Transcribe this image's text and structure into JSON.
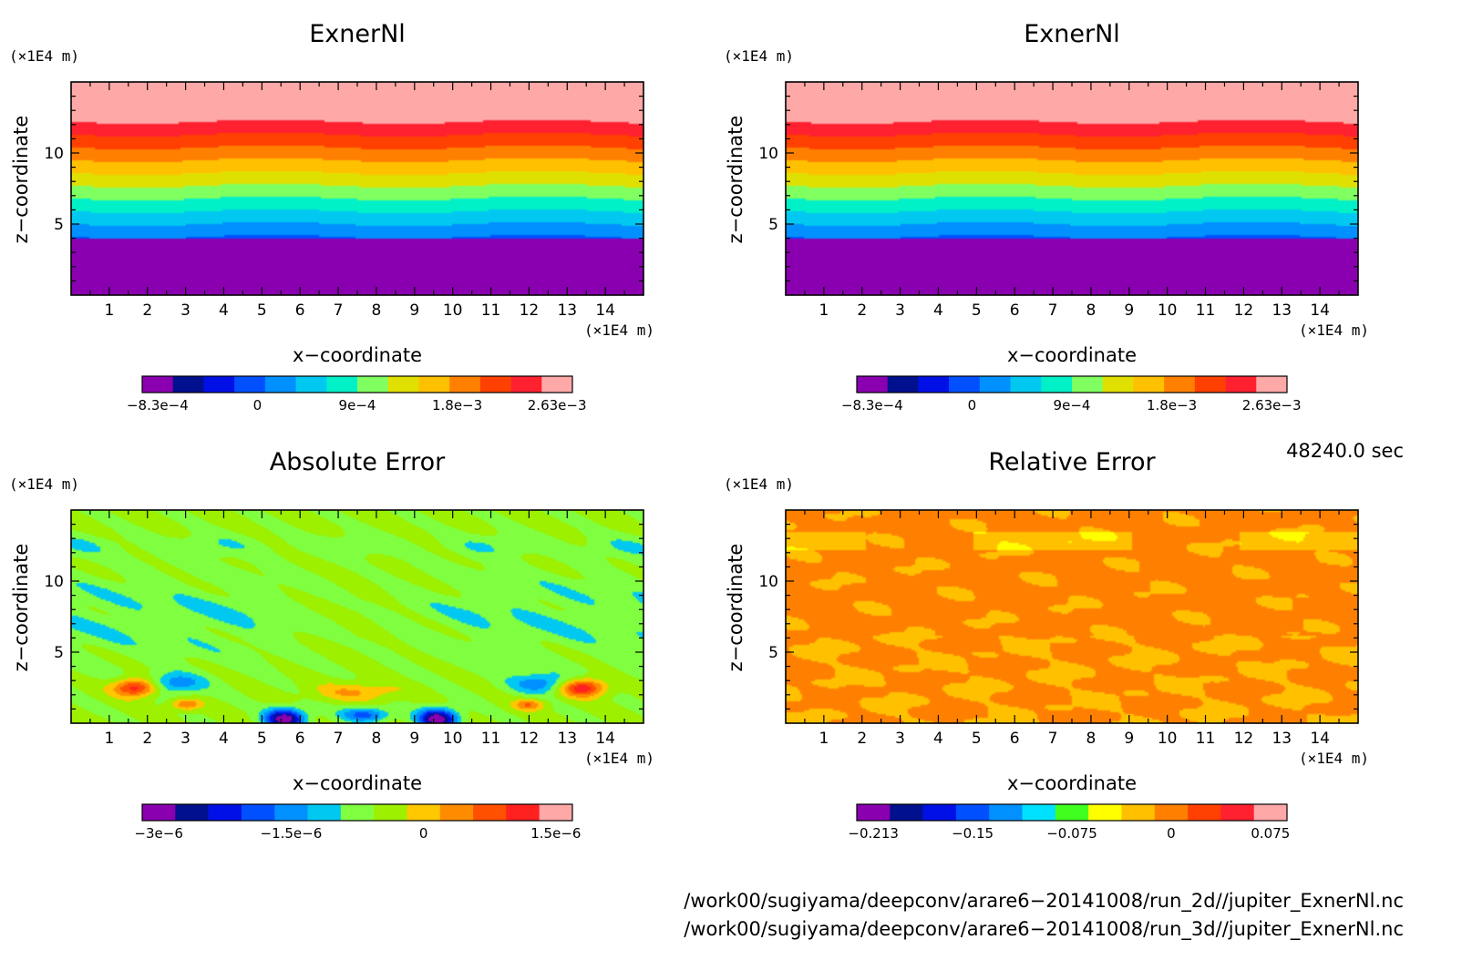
{
  "chart_data": [
    {
      "type": "heatmap",
      "title": "ExnerNl",
      "xlabel": "x−coordinate",
      "ylabel": "z−coordinate",
      "x_unit": "(×1E4 m)",
      "y_unit": "(×1E4 m)",
      "xlim": [
        0,
        15
      ],
      "ylim": [
        0,
        15
      ],
      "x_ticks": [
        "1",
        "2",
        "3",
        "4",
        "5",
        "6",
        "7",
        "8",
        "9",
        "10",
        "11",
        "12",
        "13",
        "14"
      ],
      "y_ticks": [
        "5",
        "10"
      ],
      "field": "layered",
      "colorbar": {
        "colors": [
          "#8a00b0",
          "#00108e",
          "#0010e6",
          "#0050ff",
          "#0090ff",
          "#00c8f0",
          "#00f0c8",
          "#80ff60",
          "#e0e000",
          "#ffc000",
          "#ff8000",
          "#ff4000",
          "#ff2030",
          "#ffa8a8"
        ],
        "tick_labels": [
          "−8.3e−4",
          "0",
          "9e−4",
          "1.8e−3",
          "2.63e−3"
        ]
      }
    },
    {
      "type": "heatmap",
      "title": "ExnerNl",
      "xlabel": "x−coordinate",
      "ylabel": "z−coordinate",
      "x_unit": "(×1E4 m)",
      "y_unit": "(×1E4 m)",
      "xlim": [
        0,
        15
      ],
      "ylim": [
        0,
        15
      ],
      "x_ticks": [
        "1",
        "2",
        "3",
        "4",
        "5",
        "6",
        "7",
        "8",
        "9",
        "10",
        "11",
        "12",
        "13",
        "14"
      ],
      "y_ticks": [
        "5",
        "10"
      ],
      "field": "layered",
      "colorbar": {
        "colors": [
          "#8a00b0",
          "#00108e",
          "#0010e6",
          "#0050ff",
          "#0090ff",
          "#00c8f0",
          "#00f0c8",
          "#80ff60",
          "#e0e000",
          "#ffc000",
          "#ff8000",
          "#ff4000",
          "#ff2030",
          "#ffa8a8"
        ],
        "tick_labels": [
          "−8.3e−4",
          "0",
          "9e−4",
          "1.8e−3",
          "2.63e−3"
        ]
      }
    },
    {
      "type": "heatmap",
      "title": "Absolute Error",
      "xlabel": "x−coordinate",
      "ylabel": "z−coordinate",
      "x_unit": "(×1E4 m)",
      "y_unit": "(×1E4 m)",
      "xlim": [
        0,
        15
      ],
      "ylim": [
        0,
        15
      ],
      "x_ticks": [
        "1",
        "2",
        "3",
        "4",
        "5",
        "6",
        "7",
        "8",
        "9",
        "10",
        "11",
        "12",
        "13",
        "14"
      ],
      "y_ticks": [
        "5",
        "10"
      ],
      "field": "abs_error",
      "colorbar": {
        "colors": [
          "#8a00b0",
          "#00108e",
          "#0010e6",
          "#0050ff",
          "#0090ff",
          "#00c8f0",
          "#80ff40",
          "#9cf000",
          "#ffc800",
          "#ff8c00",
          "#ff5000",
          "#ff2020",
          "#ffa8a8"
        ],
        "tick_labels": [
          "−3e−6",
          "−1.5e−6",
          "0",
          "1.5e−6"
        ]
      }
    },
    {
      "type": "heatmap",
      "title": "Relative Error",
      "xlabel": "x−coordinate",
      "ylabel": "z−coordinate",
      "x_unit": "(×1E4 m)",
      "y_unit": "(×1E4 m)",
      "xlim": [
        0,
        15
      ],
      "ylim": [
        0,
        15
      ],
      "x_ticks": [
        "1",
        "2",
        "3",
        "4",
        "5",
        "6",
        "7",
        "8",
        "9",
        "10",
        "11",
        "12",
        "13",
        "14"
      ],
      "y_ticks": [
        "5",
        "10"
      ],
      "field": "rel_error",
      "colorbar": {
        "colors": [
          "#8a00b0",
          "#00108e",
          "#0010e6",
          "#0050ff",
          "#0090ff",
          "#00e0ff",
          "#40ff20",
          "#ffff00",
          "#ffc000",
          "#ff8000",
          "#ff4000",
          "#ff2030",
          "#ffa8a8"
        ],
        "tick_labels": [
          "−0.213",
          "−0.15",
          "−0.075",
          "0",
          "0.075"
        ]
      }
    }
  ],
  "time_label": "48240.0 sec",
  "file_paths": [
    "/work00/sugiyama/deepconv/arare6−20141008/run_2d//jupiter_ExnerNl.nc",
    "/work00/sugiyama/deepconv/arare6−20141008/run_3d//jupiter_ExnerNl.nc"
  ]
}
